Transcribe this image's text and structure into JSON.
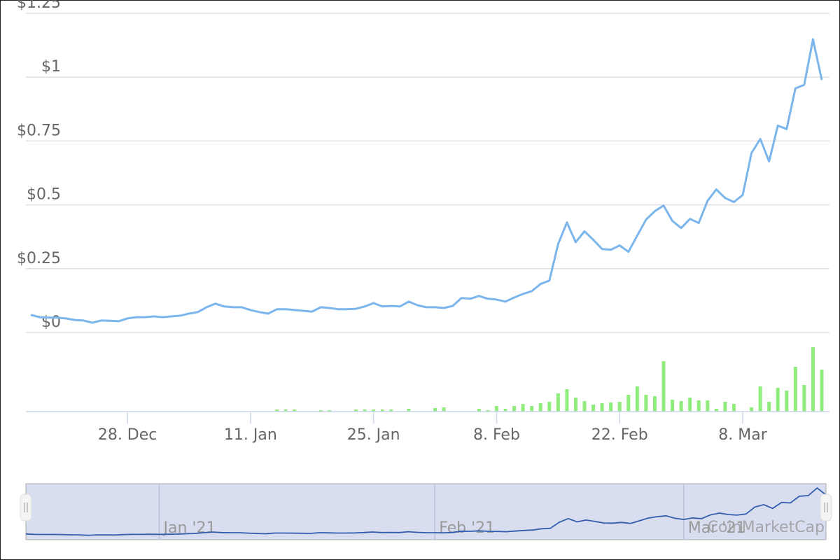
{
  "chart_data": {
    "type": "line",
    "x": [
      "2020-12-17",
      "2020-12-18",
      "2020-12-19",
      "2020-12-20",
      "2020-12-21",
      "2020-12-22",
      "2020-12-23",
      "2020-12-24",
      "2020-12-25",
      "2020-12-26",
      "2020-12-27",
      "2020-12-28",
      "2020-12-29",
      "2020-12-30",
      "2020-12-31",
      "2021-01-01",
      "2021-01-02",
      "2021-01-03",
      "2021-01-04",
      "2021-01-05",
      "2021-01-06",
      "2021-01-07",
      "2021-01-08",
      "2021-01-09",
      "2021-01-10",
      "2021-01-11",
      "2021-01-12",
      "2021-01-13",
      "2021-01-14",
      "2021-01-15",
      "2021-01-16",
      "2021-01-17",
      "2021-01-18",
      "2021-01-19",
      "2021-01-20",
      "2021-01-21",
      "2021-01-22",
      "2021-01-23",
      "2021-01-24",
      "2021-01-25",
      "2021-01-26",
      "2021-01-27",
      "2021-01-28",
      "2021-01-29",
      "2021-01-30",
      "2021-01-31",
      "2021-02-01",
      "2021-02-02",
      "2021-02-03",
      "2021-02-04",
      "2021-02-05",
      "2021-02-06",
      "2021-02-07",
      "2021-02-08",
      "2021-02-09",
      "2021-02-10",
      "2021-02-11",
      "2021-02-12",
      "2021-02-13",
      "2021-02-14",
      "2021-02-15",
      "2021-02-16",
      "2021-02-17",
      "2021-02-18",
      "2021-02-19",
      "2021-02-20",
      "2021-02-21",
      "2021-02-22",
      "2021-02-23",
      "2021-02-24",
      "2021-02-25",
      "2021-02-26",
      "2021-02-27",
      "2021-02-28",
      "2021-03-01",
      "2021-03-02",
      "2021-03-03",
      "2021-03-04",
      "2021-03-05",
      "2021-03-06",
      "2021-03-07",
      "2021-03-08",
      "2021-03-09",
      "2021-03-10",
      "2021-03-11",
      "2021-03-12",
      "2021-03-13",
      "2021-03-14",
      "2021-03-15",
      "2021-03-16",
      "2021-03-17"
    ],
    "price": {
      "color": "#7cb5ec",
      "values": [
        0.069,
        0.06,
        0.058,
        0.058,
        0.055,
        0.049,
        0.047,
        0.038,
        0.047,
        0.046,
        0.044,
        0.055,
        0.06,
        0.06,
        0.063,
        0.06,
        0.063,
        0.066,
        0.074,
        0.08,
        0.099,
        0.113,
        0.102,
        0.099,
        0.099,
        0.088,
        0.08,
        0.074,
        0.091,
        0.091,
        0.088,
        0.085,
        0.082,
        0.099,
        0.096,
        0.091,
        0.091,
        0.093,
        0.102,
        0.115,
        0.102,
        0.104,
        0.102,
        0.121,
        0.107,
        0.099,
        0.099,
        0.096,
        0.104,
        0.135,
        0.132,
        0.143,
        0.132,
        0.129,
        0.121,
        0.137,
        0.151,
        0.162,
        0.19,
        0.203,
        0.346,
        0.431,
        0.354,
        0.396,
        0.363,
        0.327,
        0.324,
        0.341,
        0.316,
        0.379,
        0.442,
        0.475,
        0.497,
        0.437,
        0.409,
        0.445,
        0.429,
        0.516,
        0.56,
        0.527,
        0.511,
        0.538,
        0.703,
        0.758,
        0.67,
        0.81,
        0.797,
        0.956,
        0.97,
        1.148,
        0.989
      ]
    },
    "volume": {
      "color": "#90ed7d",
      "values": [
        0,
        0,
        0,
        0,
        0,
        0,
        0,
        0,
        0,
        0,
        0,
        0,
        0,
        0,
        0,
        0,
        0,
        0,
        0,
        0,
        0,
        0,
        0,
        0,
        0,
        0,
        0,
        0,
        3,
        3,
        3,
        0,
        0,
        2,
        2,
        0,
        0,
        3,
        3,
        3,
        3,
        3,
        0,
        4,
        0,
        0,
        5,
        6,
        0,
        0,
        0,
        4,
        2,
        8,
        4,
        8,
        11,
        8,
        12,
        14,
        26,
        32,
        20,
        15,
        10,
        12,
        13,
        14,
        24,
        36,
        24,
        22,
        72,
        17,
        15,
        20,
        16,
        16,
        4,
        14,
        11,
        0,
        6,
        36,
        14,
        34,
        30,
        64,
        38,
        92,
        60
      ]
    },
    "ylim": [
      0,
      1.25
    ],
    "yticks": [
      {
        "value": 0,
        "label": "$0"
      },
      {
        "value": 0.25,
        "label": "$0.25"
      },
      {
        "value": 0.5,
        "label": "$0.5"
      },
      {
        "value": 0.75,
        "label": "$0.75"
      },
      {
        "value": 1,
        "label": "$1"
      },
      {
        "value": 1.25,
        "label": "$1.25"
      }
    ],
    "xticks": [
      {
        "value": "2020-12-28",
        "label": "28. Dec"
      },
      {
        "value": "2021-01-11",
        "label": "11. Jan"
      },
      {
        "value": "2021-01-25",
        "label": "25. Jan"
      },
      {
        "value": "2021-02-08",
        "label": "8. Feb"
      },
      {
        "value": "2021-02-22",
        "label": "22. Feb"
      },
      {
        "value": "2021-03-08",
        "label": "8. Mar"
      }
    ],
    "grid": true,
    "navigator": {
      "color": "#335cad",
      "ticks": [
        {
          "value": "2021-01-01",
          "label": "Jan '21"
        },
        {
          "value": "2021-02-01",
          "label": "Feb '21"
        },
        {
          "value": "2021-03-01",
          "label": "Mar '21"
        }
      ],
      "credit": "CoinMarketCap"
    }
  }
}
